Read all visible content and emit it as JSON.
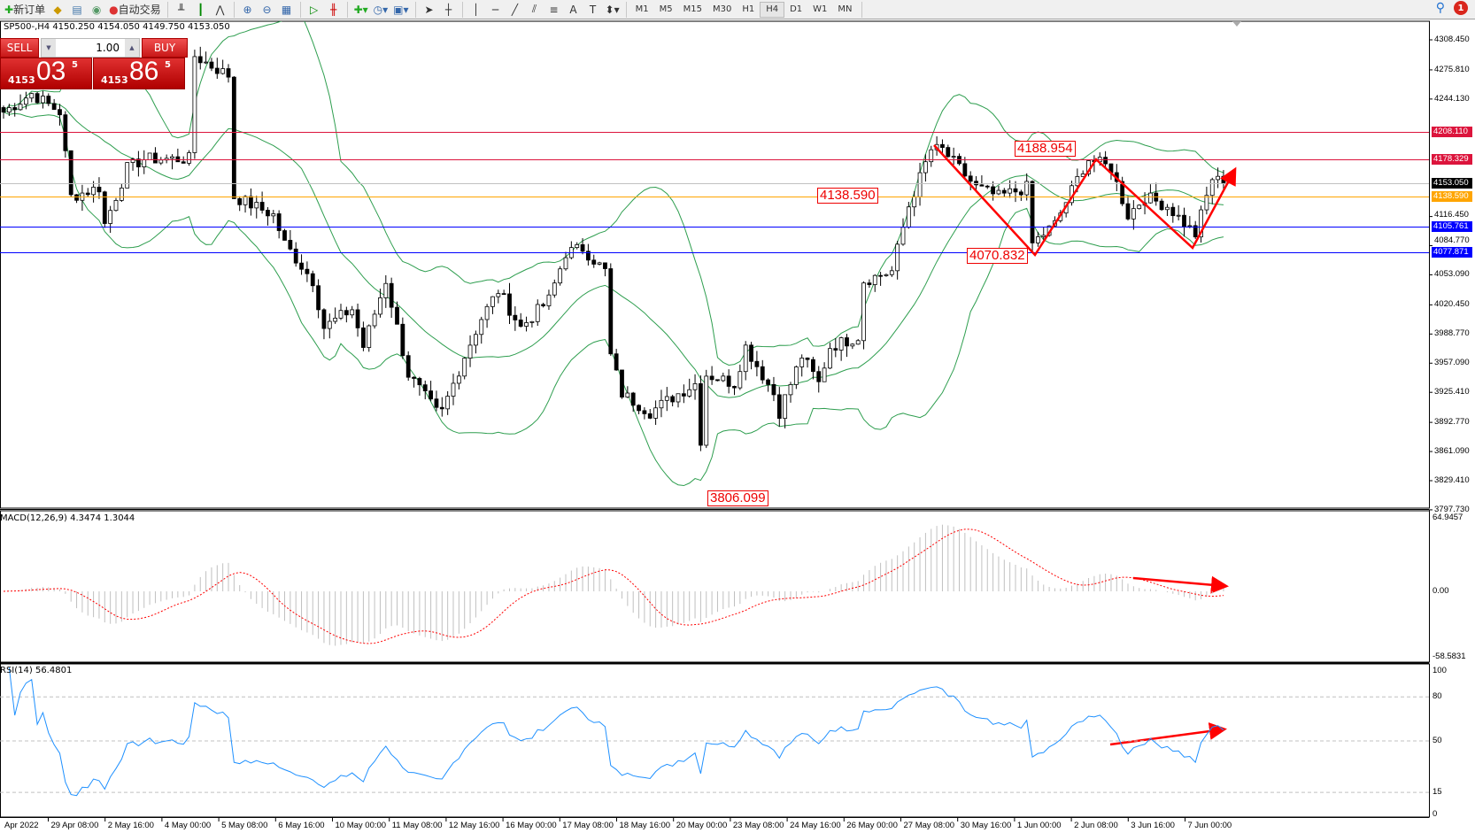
{
  "toolbar": {
    "new_order": "新订单",
    "auto_trading": "自动交易",
    "icons": [
      "new-order-icon",
      "market-watch-icon",
      "data-window-icon",
      "signal-icon",
      "auto-trading-icon",
      "bar-chart-icon",
      "candlestick-icon",
      "line-chart-icon",
      "zoom-in-icon",
      "zoom-out-icon",
      "tile-windows-icon",
      "auto-scroll-icon",
      "chart-shift-icon",
      "indicators-icon",
      "periods-icon",
      "templates-icon",
      "cursor-icon",
      "crosshair-icon",
      "vertical-line-icon",
      "horizontal-line-icon",
      "trendline-icon",
      "equidistant-channel-icon",
      "fibonacci-icon",
      "text-icon",
      "text-label-icon",
      "arrows-icon"
    ],
    "text_label": "A",
    "timeframes": [
      "M1",
      "M5",
      "M15",
      "M30",
      "H1",
      "H4",
      "D1",
      "W1",
      "MN"
    ],
    "active_timeframe": "H4",
    "notification_count": "1"
  },
  "chart": {
    "title": "SP500-,H4  4150.250 4154.050 4149.750 4153.050",
    "one_click": {
      "sell": "SELL",
      "buy": "BUY",
      "lot": "1.00",
      "bid_small": "4153",
      "bid_big": "03",
      "bid_sup": "5",
      "ask_small": "4153",
      "ask_big": "86",
      "ask_sup": "5"
    },
    "price_ticks": [
      "4308.450",
      "4275.810",
      "4244.130",
      "4116.450",
      "4084.770",
      "4053.090",
      "4020.450",
      "3988.770",
      "3957.090",
      "3925.410",
      "3892.770",
      "3861.090",
      "3829.410",
      "3797.730"
    ],
    "price_range": [
      3797.73,
      4308.45
    ],
    "hlines": [
      {
        "price": 4208.11,
        "label": "4208.110",
        "color": "#dc143c"
      },
      {
        "price": 4178.329,
        "label": "4178.329",
        "color": "#dc143c"
      },
      {
        "price": 4153.05,
        "label": "4153.050",
        "color": "#000000",
        "line": "#c0c0c0"
      },
      {
        "price": 4138.59,
        "label": "4138.590",
        "color": "#ffa500"
      },
      {
        "price": 4105.761,
        "label": "4105.761",
        "color": "#0000ff"
      },
      {
        "price": 4077.871,
        "label": "4077.871",
        "color": "#0000ff"
      }
    ],
    "annotations": [
      "4138.590",
      "4188.954",
      "4070.832",
      "3806.099"
    ],
    "path": [
      [
        0,
        4230
      ],
      [
        5,
        4250
      ],
      [
        10,
        4230
      ],
      [
        12,
        4138
      ],
      [
        17,
        4148
      ],
      [
        18,
        4108
      ],
      [
        22,
        4169
      ],
      [
        25,
        4179
      ],
      [
        32,
        4179
      ],
      [
        33,
        4179
      ],
      [
        34,
        4291
      ],
      [
        37,
        4280
      ],
      [
        40,
        4270
      ],
      [
        41,
        4138
      ],
      [
        48,
        4118
      ],
      [
        50,
        4087
      ],
      [
        55,
        4047
      ],
      [
        57,
        3996
      ],
      [
        62,
        4016
      ],
      [
        64,
        3975
      ],
      [
        68,
        4047
      ],
      [
        72,
        3945
      ],
      [
        77,
        3904
      ],
      [
        78,
        3904
      ],
      [
        82,
        3965
      ],
      [
        85,
        4006
      ],
      [
        88,
        4036
      ],
      [
        92,
        3996
      ],
      [
        97,
        4026
      ],
      [
        100,
        4077
      ],
      [
        103,
        4082
      ],
      [
        107,
        4057
      ],
      [
        108,
        3965
      ],
      [
        110,
        3924
      ],
      [
        115,
        3904
      ],
      [
        120,
        3924
      ],
      [
        123,
        3935
      ],
      [
        124,
        3874
      ],
      [
        125,
        3945
      ],
      [
        130,
        3935
      ],
      [
        132,
        3975
      ],
      [
        137,
        3924
      ],
      [
        138,
        3904
      ],
      [
        142,
        3965
      ],
      [
        145,
        3935
      ],
      [
        147,
        3975
      ],
      [
        152,
        3986
      ],
      [
        153,
        4047
      ],
      [
        158,
        4057
      ],
      [
        161,
        4128
      ],
      [
        165,
        4189
      ],
      [
        167,
        4189
      ],
      [
        173,
        4148
      ],
      [
        177,
        4138
      ],
      [
        182,
        4148
      ],
      [
        183,
        4087
      ],
      [
        187,
        4108
      ],
      [
        192,
        4169
      ],
      [
        193,
        4179
      ],
      [
        197,
        4169
      ],
      [
        200,
        4118
      ],
      [
        203,
        4138
      ],
      [
        207,
        4128
      ],
      [
        212,
        4097
      ],
      [
        213,
        4118
      ],
      [
        215,
        4158
      ],
      [
        217,
        4153
      ]
    ],
    "bollinger": "20,2"
  },
  "macd": {
    "label": "MACD(12,26,9) 4.3474 1.3044",
    "ticks": [
      "64.9457",
      "0.00",
      "-58.5831"
    ],
    "max": 64.9457,
    "min": -58.5831
  },
  "rsi": {
    "label": "RSI(14) 56.4801",
    "ticks": [
      "100",
      "80",
      "50",
      "15",
      "0"
    ],
    "levels": [
      80,
      50,
      15
    ]
  },
  "time_labels": [
    "Apr 2022",
    "29 Apr 08:00",
    "2 May 16:00",
    "4 May 00:00",
    "5 May 08:00",
    "6 May 16:00",
    "10 May 00:00",
    "11 May 08:00",
    "12 May 16:00",
    "16 May 00:00",
    "17 May 08:00",
    "18 May 16:00",
    "20 May 00:00",
    "23 May 08:00",
    "24 May 16:00",
    "26 May 00:00",
    "27 May 08:00",
    "30 May 16:00",
    "1 Jun 00:00",
    "2 Jun 08:00",
    "3 Jun 16:00",
    "7 Jun 00:00"
  ],
  "colors": {
    "bands": "#2e9e4f",
    "macd_signal": "#ff0000",
    "macd_hist": "#c0c0c0",
    "rsi": "#1e90ff",
    "arrow": "#ff0000"
  }
}
